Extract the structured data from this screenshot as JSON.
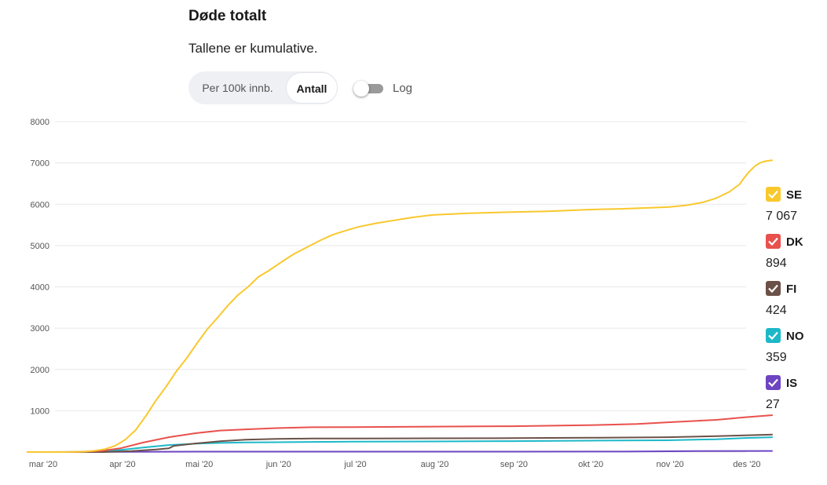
{
  "header": {
    "title": "Døde totalt",
    "subtitle": "Tallene er kumulative."
  },
  "controls": {
    "mode_per100k": "Per 100k innb.",
    "mode_count": "Antall",
    "selected_mode": "Antall",
    "log_label": "Log",
    "log_enabled": false
  },
  "colors": {
    "SE": "#f9c82d",
    "DK": "#e8514d",
    "FI": "#6b5148",
    "NO": "#1db8c8",
    "IS": "#6d45c2",
    "grid": "#e8e8e8",
    "axis_text": "#555555"
  },
  "legend": [
    {
      "code": "SE",
      "value": "7 067",
      "checked": true
    },
    {
      "code": "DK",
      "value": "894",
      "checked": true
    },
    {
      "code": "FI",
      "value": "424",
      "checked": true
    },
    {
      "code": "NO",
      "value": "359",
      "checked": true
    },
    {
      "code": "IS",
      "value": "27",
      "checked": true
    }
  ],
  "chart_data": {
    "type": "line",
    "title": "Døde totalt",
    "subtitle": "Tallene er kumulative.",
    "ylim": [
      0,
      8000
    ],
    "yticks": [
      0,
      1000,
      2000,
      3000,
      4000,
      5000,
      6000,
      7000,
      8000
    ],
    "ytick_labels": [
      "",
      "1000",
      "2000",
      "3000",
      "4000",
      "5000",
      "6000",
      "7000",
      "8000"
    ],
    "xlim": [
      "2020-03-01",
      "2020-12-05"
    ],
    "xticks": [
      {
        "date": "2020-03-01",
        "label": "mar '20"
      },
      {
        "date": "2020-04-01",
        "label": "apr '20"
      },
      {
        "date": "2020-05-01",
        "label": "mai '20"
      },
      {
        "date": "2020-06-01",
        "label": "jun '20"
      },
      {
        "date": "2020-07-01",
        "label": "jul '20"
      },
      {
        "date": "2020-08-01",
        "label": "aug '20"
      },
      {
        "date": "2020-09-01",
        "label": "sep '20"
      },
      {
        "date": "2020-10-01",
        "label": "okt '20"
      },
      {
        "date": "2020-11-01",
        "label": "nov '20"
      },
      {
        "date": "2020-12-01",
        "label": "des '20"
      }
    ],
    "grid": true,
    "legend_position": "right",
    "series": [
      {
        "name": "SE",
        "points": [
          [
            "2020-03-10",
            0
          ],
          [
            "2020-03-18",
            10
          ],
          [
            "2020-03-22",
            30
          ],
          [
            "2020-03-26",
            70
          ],
          [
            "2020-03-30",
            150
          ],
          [
            "2020-04-03",
            300
          ],
          [
            "2020-04-07",
            530
          ],
          [
            "2020-04-11",
            870
          ],
          [
            "2020-04-15",
            1250
          ],
          [
            "2020-04-19",
            1590
          ],
          [
            "2020-04-23",
            1960
          ],
          [
            "2020-04-27",
            2270
          ],
          [
            "2020-05-01",
            2630
          ],
          [
            "2020-05-05",
            2970
          ],
          [
            "2020-05-09",
            3250
          ],
          [
            "2020-05-13",
            3540
          ],
          [
            "2020-05-17",
            3800
          ],
          [
            "2020-05-21",
            4000
          ],
          [
            "2020-05-25",
            4240
          ],
          [
            "2020-05-29",
            4390
          ],
          [
            "2020-06-03",
            4600
          ],
          [
            "2020-06-08",
            4800
          ],
          [
            "2020-06-13",
            4960
          ],
          [
            "2020-06-18",
            5120
          ],
          [
            "2020-06-23",
            5260
          ],
          [
            "2020-06-28",
            5360
          ],
          [
            "2020-07-03",
            5450
          ],
          [
            "2020-07-10",
            5540
          ],
          [
            "2020-07-17",
            5610
          ],
          [
            "2020-07-24",
            5680
          ],
          [
            "2020-08-01",
            5740
          ],
          [
            "2020-08-15",
            5780
          ],
          [
            "2020-09-01",
            5810
          ],
          [
            "2020-09-15",
            5830
          ],
          [
            "2020-10-01",
            5870
          ],
          [
            "2020-10-15",
            5890
          ],
          [
            "2020-11-01",
            5930
          ],
          [
            "2020-11-08",
            5970
          ],
          [
            "2020-11-15",
            6050
          ],
          [
            "2020-11-20",
            6150
          ],
          [
            "2020-11-25",
            6300
          ],
          [
            "2020-11-29",
            6480
          ],
          [
            "2020-12-01",
            6650
          ],
          [
            "2020-12-03",
            6800
          ],
          [
            "2020-12-05",
            6920
          ],
          [
            "2020-12-07",
            7000
          ],
          [
            "2020-12-09",
            7040
          ],
          [
            "2020-12-12",
            7067
          ]
        ]
      },
      {
        "name": "DK",
        "points": [
          [
            "2020-03-15",
            0
          ],
          [
            "2020-03-25",
            30
          ],
          [
            "2020-04-01",
            90
          ],
          [
            "2020-04-10",
            230
          ],
          [
            "2020-04-20",
            360
          ],
          [
            "2020-05-01",
            460
          ],
          [
            "2020-05-10",
            520
          ],
          [
            "2020-05-20",
            550
          ],
          [
            "2020-06-01",
            580
          ],
          [
            "2020-06-15",
            600
          ],
          [
            "2020-07-01",
            605
          ],
          [
            "2020-08-01",
            615
          ],
          [
            "2020-09-01",
            625
          ],
          [
            "2020-10-01",
            650
          ],
          [
            "2020-10-20",
            680
          ],
          [
            "2020-11-01",
            720
          ],
          [
            "2020-11-20",
            780
          ],
          [
            "2020-12-01",
            840
          ],
          [
            "2020-12-12",
            894
          ]
        ]
      },
      {
        "name": "FI",
        "points": [
          [
            "2020-03-25",
            0
          ],
          [
            "2020-04-05",
            20
          ],
          [
            "2020-04-15",
            60
          ],
          [
            "2020-04-20",
            90
          ],
          [
            "2020-04-22",
            150
          ],
          [
            "2020-05-01",
            210
          ],
          [
            "2020-05-10",
            260
          ],
          [
            "2020-05-20",
            300
          ],
          [
            "2020-06-01",
            320
          ],
          [
            "2020-06-15",
            326
          ],
          [
            "2020-07-01",
            328
          ],
          [
            "2020-08-01",
            333
          ],
          [
            "2020-09-01",
            337
          ],
          [
            "2020-10-01",
            345
          ],
          [
            "2020-11-01",
            360
          ],
          [
            "2020-11-20",
            385
          ],
          [
            "2020-12-01",
            405
          ],
          [
            "2020-12-12",
            424
          ]
        ]
      },
      {
        "name": "NO",
        "points": [
          [
            "2020-03-12",
            0
          ],
          [
            "2020-03-25",
            20
          ],
          [
            "2020-04-01",
            50
          ],
          [
            "2020-04-10",
            110
          ],
          [
            "2020-04-20",
            170
          ],
          [
            "2020-05-01",
            205
          ],
          [
            "2020-05-10",
            220
          ],
          [
            "2020-05-20",
            232
          ],
          [
            "2020-06-01",
            238
          ],
          [
            "2020-07-01",
            250
          ],
          [
            "2020-08-01",
            256
          ],
          [
            "2020-09-01",
            264
          ],
          [
            "2020-10-01",
            275
          ],
          [
            "2020-11-01",
            285
          ],
          [
            "2020-11-20",
            310
          ],
          [
            "2020-12-01",
            340
          ],
          [
            "2020-12-12",
            359
          ]
        ]
      },
      {
        "name": "IS",
        "points": [
          [
            "2020-03-01",
            0
          ],
          [
            "2020-04-01",
            5
          ],
          [
            "2020-05-01",
            10
          ],
          [
            "2020-09-01",
            10
          ],
          [
            "2020-10-15",
            12
          ],
          [
            "2020-11-15",
            25
          ],
          [
            "2020-12-12",
            27
          ]
        ]
      }
    ]
  }
}
